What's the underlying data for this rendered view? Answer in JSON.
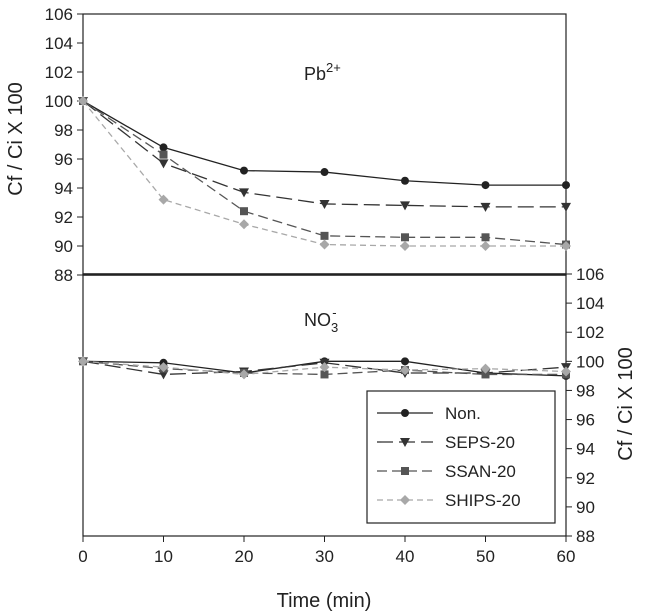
{
  "chart_data": [
    {
      "type": "line",
      "panel": "top",
      "annotation": {
        "base": "Pb",
        "sup": "2+"
      },
      "ylabel": "Cf / Ci X 100",
      "y_axis_side": "left",
      "ylim": [
        88,
        106
      ],
      "yticks": [
        88,
        90,
        92,
        94,
        96,
        98,
        100,
        102,
        104,
        106
      ],
      "x": [
        0,
        10,
        20,
        30,
        40,
        50,
        60
      ],
      "series": [
        {
          "name": "Non.",
          "color": "#222222",
          "marker": "circle",
          "dash": "solid",
          "values": [
            100,
            96.8,
            95.2,
            95.1,
            94.5,
            94.2,
            94.2
          ]
        },
        {
          "name": "SEPS-20",
          "color": "#333333",
          "marker": "triangle-down",
          "dash": "long",
          "values": [
            100,
            95.7,
            93.7,
            92.9,
            92.8,
            92.7,
            92.7
          ]
        },
        {
          "name": "SSAN-20",
          "color": "#555555",
          "marker": "square",
          "dash": "medium",
          "values": [
            100,
            96.3,
            92.4,
            90.7,
            90.6,
            90.6,
            90.1
          ]
        },
        {
          "name": "SHIPS-20",
          "color": "#a8a8a8",
          "marker": "diamond",
          "dash": "short",
          "values": [
            100,
            93.2,
            91.5,
            90.1,
            90.0,
            90.0,
            90.0
          ]
        }
      ]
    },
    {
      "type": "line",
      "panel": "bottom",
      "annotation": {
        "base": "NO",
        "sub": "3",
        "sup": "-"
      },
      "ylabel": "Cf / Ci X 100",
      "y_axis_side": "right",
      "ylim": [
        88,
        106
      ],
      "yticks": [
        88,
        90,
        92,
        94,
        96,
        98,
        100,
        102,
        104,
        106
      ],
      "xlabel": "Time (min)",
      "xlim": [
        0,
        60
      ],
      "xticks": [
        0,
        10,
        20,
        30,
        40,
        50,
        60
      ],
      "x": [
        0,
        10,
        20,
        30,
        40,
        50,
        60
      ],
      "legend_placement": "bottom-right",
      "series": [
        {
          "name": "Non.",
          "color": "#222222",
          "marker": "circle",
          "dash": "solid",
          "values": [
            100,
            99.9,
            99.2,
            100,
            100,
            99.2,
            99.0
          ]
        },
        {
          "name": "SEPS-20",
          "color": "#333333",
          "marker": "triangle-down",
          "dash": "long",
          "values": [
            100,
            99.1,
            99.3,
            99.9,
            99.2,
            99.2,
            99.6
          ]
        },
        {
          "name": "SSAN-20",
          "color": "#555555",
          "marker": "square",
          "dash": "medium",
          "values": [
            100,
            99.5,
            99.2,
            99.1,
            99.4,
            99.1,
            99.1
          ]
        },
        {
          "name": "SHIPS-20",
          "color": "#a8a8a8",
          "marker": "diamond",
          "dash": "short",
          "values": [
            100,
            99.6,
            99.1,
            99.6,
            99.4,
            99.5,
            99.3
          ]
        }
      ]
    }
  ]
}
